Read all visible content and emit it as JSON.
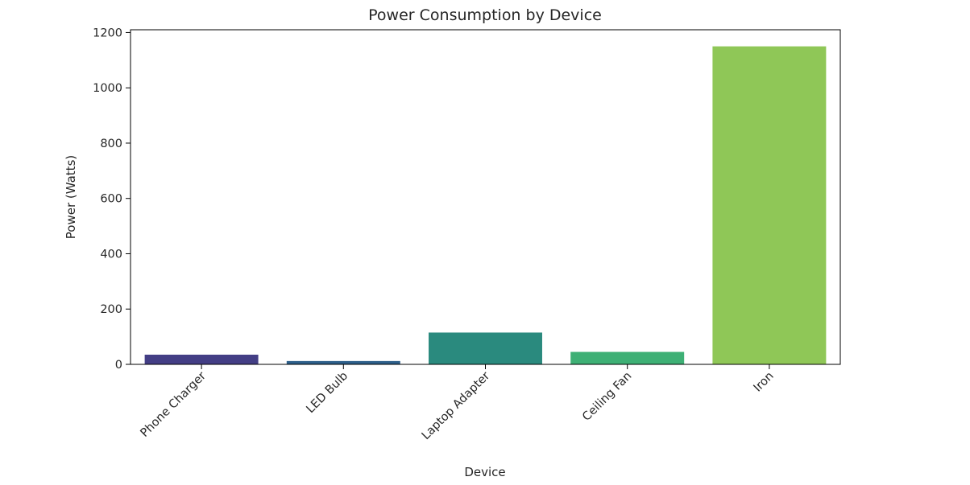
{
  "chart_data": {
    "type": "bar",
    "title": "Power Consumption by Device",
    "xlabel": "Device",
    "ylabel": "Power (Watts)",
    "categories": [
      "Phone Charger",
      "LED Bulb",
      "Laptop Adapter",
      "Ceiling Fan",
      "Iron"
    ],
    "values": [
      35,
      12,
      115,
      45,
      1150
    ],
    "colors": [
      "#433e85",
      "#2d5f8a",
      "#2a8a7e",
      "#3eb075",
      "#8fc757"
    ],
    "ylim": [
      0,
      1210
    ],
    "yticks": [
      0,
      200,
      400,
      600,
      800,
      1000,
      1200
    ],
    "xtick_rotation": "45 degrees",
    "grid": false,
    "legend": "none"
  }
}
